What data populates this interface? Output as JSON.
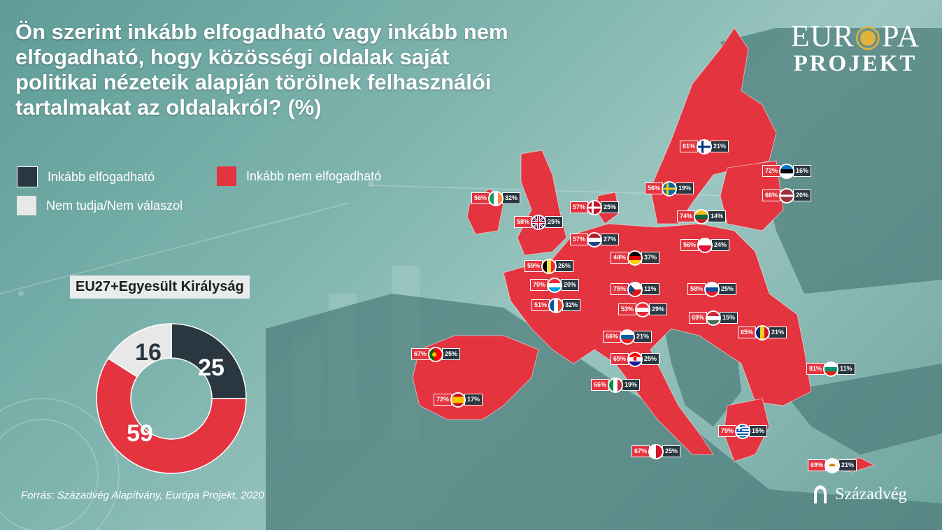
{
  "title": "Ön szerint inkább elfogadható vagy inkább nem elfogadható, hogy közösségi oldalak saját politikai nézeteik alapján törölnek felhasználói tartalmakat az oldalakról? (%)",
  "legend": {
    "acceptable": {
      "label": "Inkább elfogadható",
      "color": "#2a3740"
    },
    "not_acceptable": {
      "label": "Inkább nem elfogadható",
      "color": "#e3343f"
    },
    "dont_know": {
      "label": "Nem tudja/Nem válaszol",
      "color": "#e8e8e8"
    }
  },
  "eu_total": {
    "label": "EU27+Egyesült Királyság",
    "acceptable": 25,
    "not_acceptable": 59,
    "dont_know": 16,
    "acceptable_text": "25",
    "not_acceptable_text": "59",
    "dont_know_text": "16"
  },
  "countries": [
    {
      "flag": "finland-flag-icon",
      "red": "61%",
      "dark": "21%"
    },
    {
      "flag": "estonia-flag-icon",
      "red": "72%",
      "dark": "16%"
    },
    {
      "flag": "latvia-flag-icon",
      "red": "66%",
      "dark": "20%"
    },
    {
      "flag": "sweden-flag-icon",
      "red": "56%",
      "dark": "19%"
    },
    {
      "flag": "lithuania-flag-icon",
      "red": "74%",
      "dark": "14%"
    },
    {
      "flag": "ireland-flag-icon",
      "red": "56%",
      "dark": "32%"
    },
    {
      "flag": "denmark-flag-icon",
      "red": "57%",
      "dark": "25%"
    },
    {
      "flag": "united-kingdom-flag-icon",
      "red": "58%",
      "dark": "25%"
    },
    {
      "flag": "netherlands-flag-icon",
      "red": "57%",
      "dark": "27%"
    },
    {
      "flag": "poland-flag-icon",
      "red": "56%",
      "dark": "24%"
    },
    {
      "flag": "germany-flag-icon",
      "red": "44%",
      "dark": "37%"
    },
    {
      "flag": "belgium-flag-icon",
      "red": "59%",
      "dark": "26%"
    },
    {
      "flag": "luxembourg-flag-icon",
      "red": "70%",
      "dark": "20%"
    },
    {
      "flag": "czechia-flag-icon",
      "red": "75%",
      "dark": "11%"
    },
    {
      "flag": "slovakia-flag-icon",
      "red": "58%",
      "dark": "25%"
    },
    {
      "flag": "france-flag-icon",
      "red": "51%",
      "dark": "32%"
    },
    {
      "flag": "austria-flag-icon",
      "red": "53%",
      "dark": "29%"
    },
    {
      "flag": "hungary-flag-icon",
      "red": "69%",
      "dark": "15%"
    },
    {
      "flag": "romania-flag-icon",
      "red": "65%",
      "dark": "21%"
    },
    {
      "flag": "slovenia-flag-icon",
      "red": "66%",
      "dark": "21%"
    },
    {
      "flag": "portugal-flag-icon",
      "red": "67%",
      "dark": "25%"
    },
    {
      "flag": "croatia-flag-icon",
      "red": "65%",
      "dark": "25%"
    },
    {
      "flag": "bulgaria-flag-icon",
      "red": "81%",
      "dark": "11%"
    },
    {
      "flag": "italy-flag-icon",
      "red": "66%",
      "dark": "19%"
    },
    {
      "flag": "spain-flag-icon",
      "red": "72%",
      "dark": "17%"
    },
    {
      "flag": "greece-flag-icon",
      "red": "79%",
      "dark": "15%"
    },
    {
      "flag": "malta-flag-icon",
      "red": "67%",
      "dark": "25%"
    },
    {
      "flag": "cyprus-flag-icon",
      "red": "69%",
      "dark": "21%"
    }
  ],
  "source": "Forrás: Századvég Alapítvány, Európa Projekt, 2020",
  "logo_top": {
    "line1_a": "EUR",
    "line1_b": "PA",
    "line2": "PROJEKT"
  },
  "logo_bottom": "Századvég",
  "colors": {
    "map_red": "#e3343f",
    "non_eu": "#4f7f7c",
    "background": "#7db3ad"
  }
}
